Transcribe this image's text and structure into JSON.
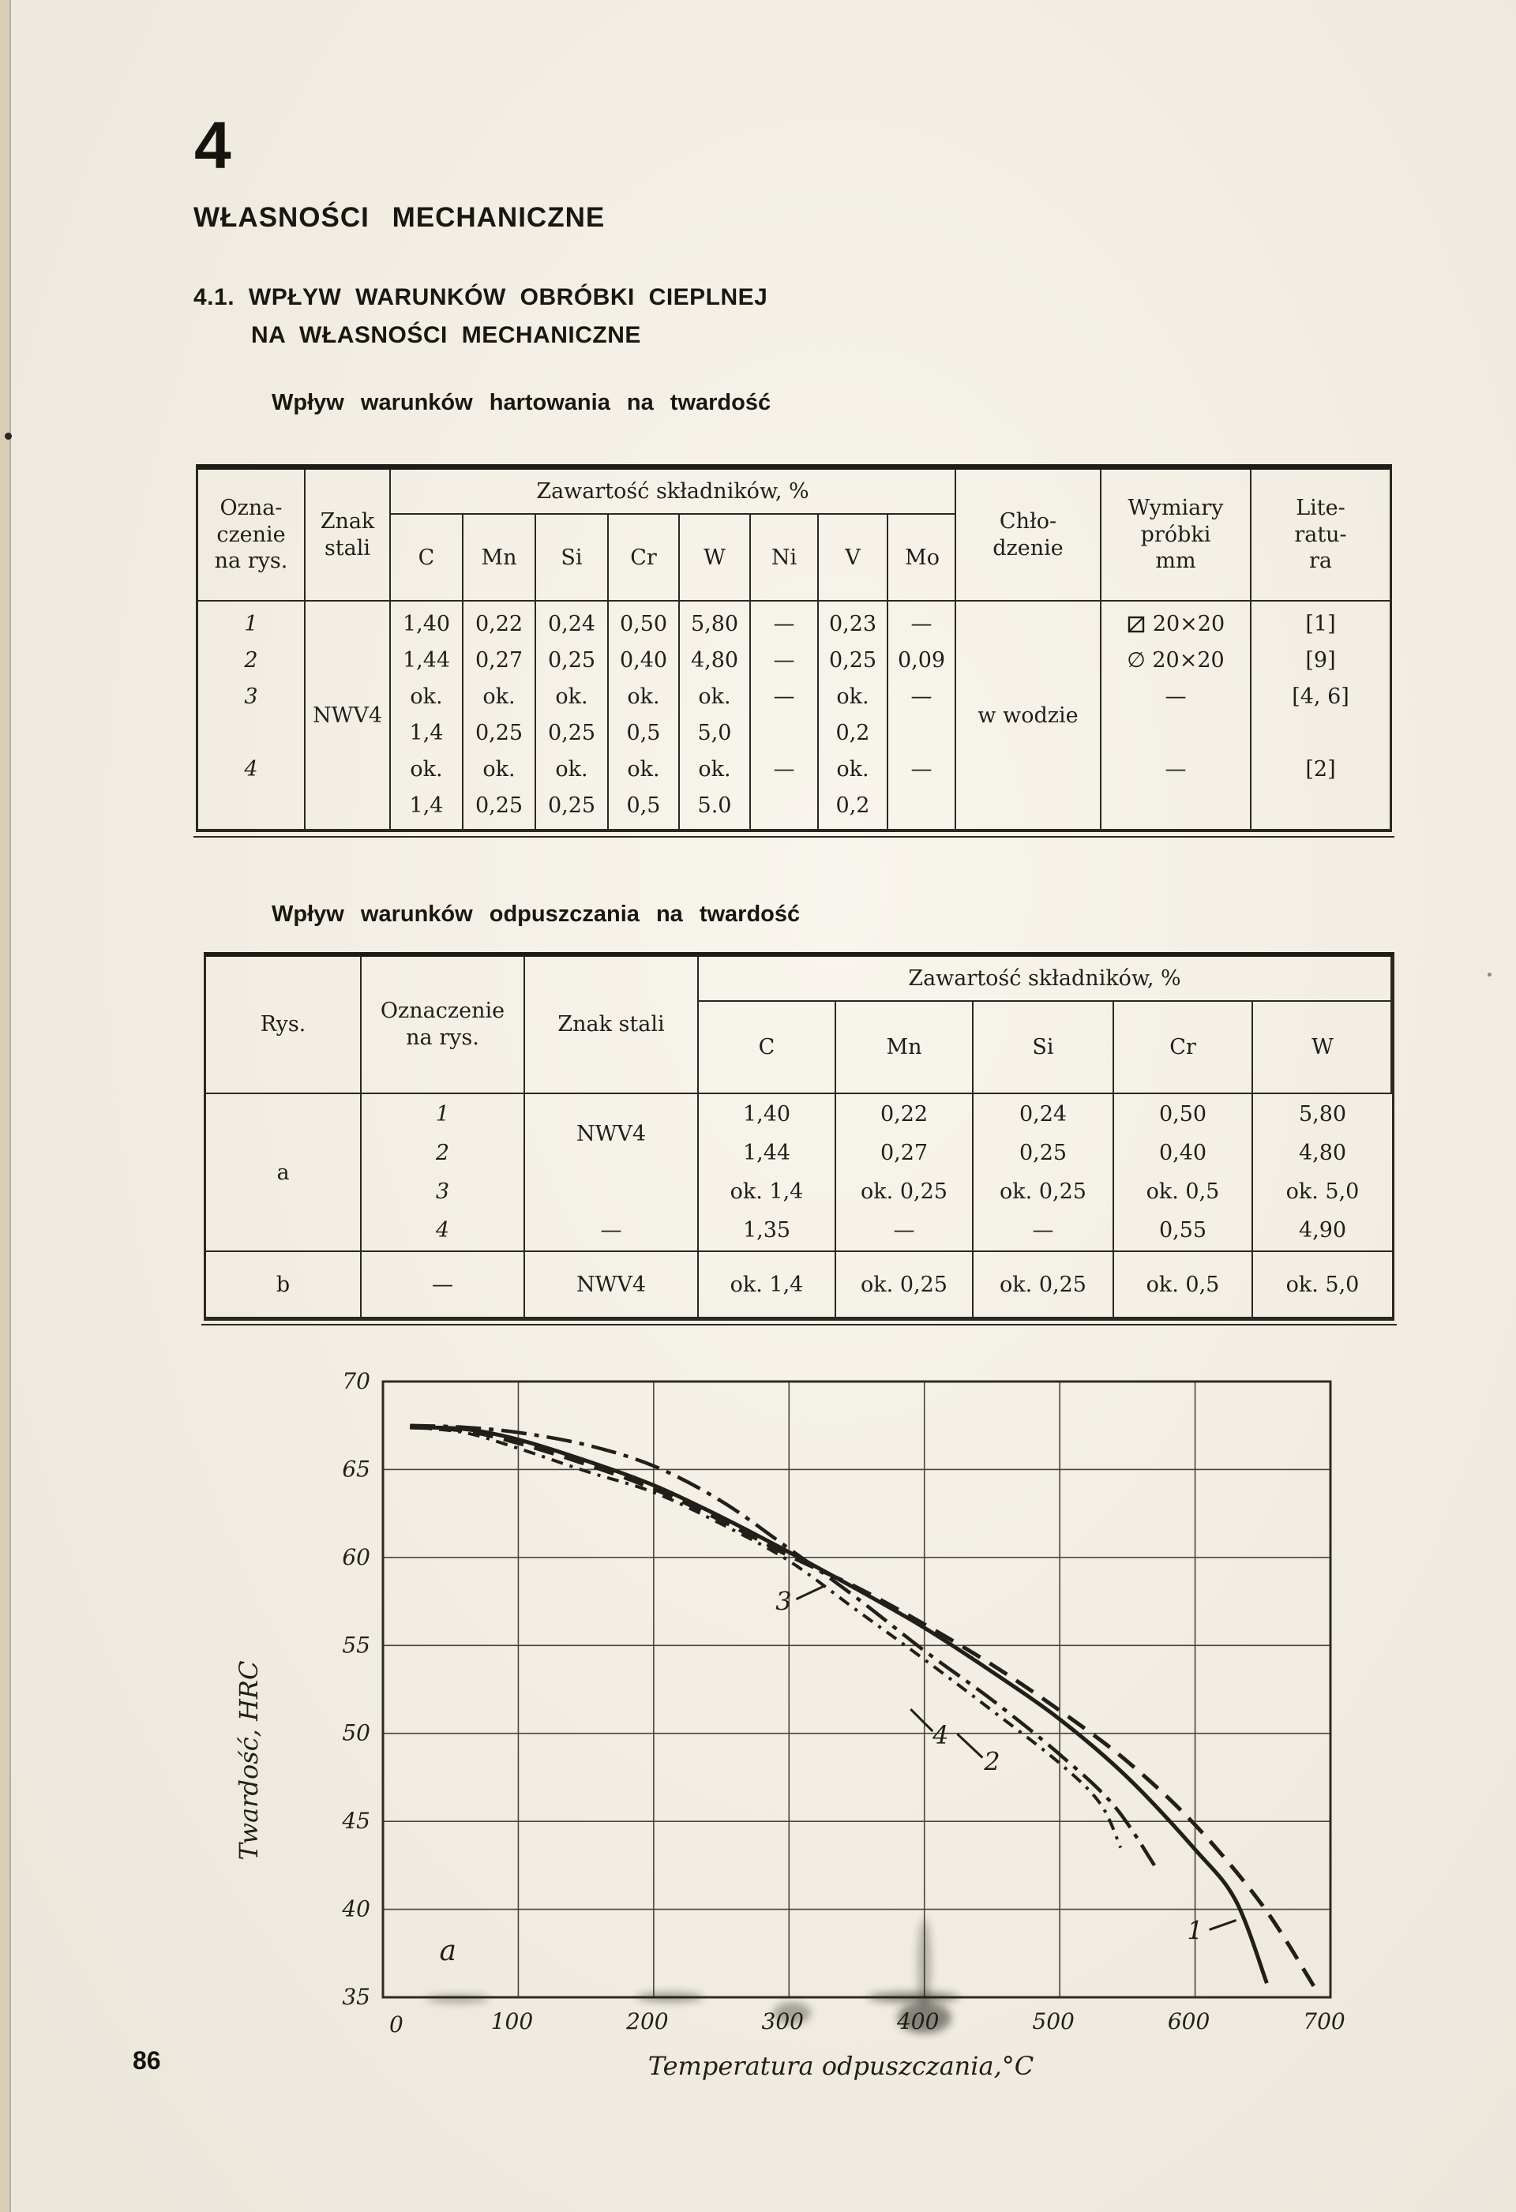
{
  "page": {
    "chapter_number": "4",
    "title": "WŁASNOŚCI MECHANICZNE",
    "section_line1": "4.1. WPŁYW WARUNKÓW OBRÓBKI CIEPLNEJ",
    "section_line2": "NA WŁASNOŚCI MECHANICZNE",
    "number": "86"
  },
  "table1": {
    "caption": "Wpływ warunków hartowania na twardość",
    "header": {
      "col1": "Ozna-\nczenie\nna rys.",
      "col2": "Znak\nstali",
      "group": "Zawartość składników, %",
      "elements": [
        "C",
        "Mn",
        "Si",
        "Cr",
        "W",
        "Ni",
        "V",
        "Mo"
      ],
      "cooling": "Chło-\ndzenie",
      "dims": "Wymiary\npróbki\nmm",
      "lit": "Lite-\nratu-\nra"
    },
    "steel": "NWV4",
    "body": {
      "no": [
        "1",
        "2",
        "3",
        "",
        "4",
        ""
      ],
      "c": [
        "1,40",
        "1,44",
        "ok.",
        "1,4",
        "ok.",
        "1,4"
      ],
      "mn": [
        "0,22",
        "0,27",
        "ok.",
        "0,25",
        "ok.",
        "0,25"
      ],
      "si": [
        "0,24",
        "0,25",
        "ok.",
        "0,25",
        "ok.",
        "0,25"
      ],
      "cr": [
        "0,50",
        "0,40",
        "ok.",
        "0,5",
        "ok.",
        "0,5"
      ],
      "w": [
        "5,80",
        "4,80",
        "ok.",
        "5,0",
        "ok.",
        "5.0"
      ],
      "ni": [
        "—",
        "—",
        "—",
        "",
        "—",
        ""
      ],
      "v": [
        "0,23",
        "0,25",
        "ok.",
        "0,2",
        "ok.",
        "0,2"
      ],
      "mo": [
        "—",
        "0,09",
        "—",
        "",
        "—",
        ""
      ],
      "cooling": "w wodzie",
      "dims": [
        "20×20",
        "∅ 20×20",
        "—",
        "",
        "—",
        ""
      ],
      "lit": [
        "[1]",
        "[9]",
        "[4, 6]",
        "",
        "[2]",
        ""
      ]
    }
  },
  "table2": {
    "caption": "Wpływ warunków odpuszczania na twardość",
    "header": {
      "col1": "Rys.",
      "col2": "Oznaczenie\nna rys.",
      "col3": "Znak stali",
      "group": "Zawartość składników, %",
      "elements": [
        "C",
        "Mn",
        "Si",
        "Cr",
        "W"
      ]
    },
    "rowA": {
      "rys": "a",
      "no": [
        "1",
        "2",
        "3",
        "4"
      ],
      "znak": [
        "NWV4",
        "",
        "",
        "—"
      ],
      "c": [
        "1,40",
        "1,44",
        "ok. 1,4",
        "1,35"
      ],
      "mn": [
        "0,22",
        "0,27",
        "ok. 0,25",
        "—"
      ],
      "si": [
        "0,24",
        "0,25",
        "ok. 0,25",
        "—"
      ],
      "cr": [
        "0,50",
        "0,40",
        "ok. 0,5",
        "0,55"
      ],
      "w": [
        "5,80",
        "4,80",
        "ok. 5,0",
        "4,90"
      ]
    },
    "rowB": {
      "rys": "b",
      "no": "—",
      "znak": "NWV4",
      "c": "ok. 1,4",
      "mn": "ok. 0,25",
      "si": "ok. 0,25",
      "cr": "ok. 0,5",
      "w": "ok. 5,0"
    }
  },
  "chart_data": {
    "type": "line",
    "xlabel": "Temperatura odpuszczania,°C",
    "ylabel": "Twardość, HRC",
    "subplot_label": "a",
    "xlim": [
      0,
      700
    ],
    "ylim": [
      35,
      70
    ],
    "xticks": [
      0,
      100,
      200,
      300,
      400,
      500,
      600,
      700
    ],
    "yticks": [
      35,
      40,
      45,
      50,
      55,
      60,
      65,
      70
    ],
    "grid": true,
    "legend_position": "inline-curve-labels",
    "series": [
      {
        "name": "1",
        "style": "solid",
        "points": [
          [
            20,
            67.4
          ],
          [
            60,
            67.3
          ],
          [
            100,
            66.7
          ],
          [
            150,
            65.5
          ],
          [
            200,
            64.1
          ],
          [
            250,
            62.3
          ],
          [
            300,
            60.3
          ],
          [
            350,
            58.2
          ],
          [
            400,
            56.0
          ],
          [
            450,
            53.5
          ],
          [
            500,
            50.8
          ],
          [
            550,
            47.5
          ],
          [
            600,
            43.4
          ],
          [
            630,
            40.5
          ],
          [
            653,
            35.8
          ]
        ]
      },
      {
        "name": "2",
        "style": "dashed",
        "points": [
          [
            20,
            67.4
          ],
          [
            60,
            67.2
          ],
          [
            100,
            66.5
          ],
          [
            150,
            65.3
          ],
          [
            200,
            63.9
          ],
          [
            250,
            62.1
          ],
          [
            300,
            60.1
          ],
          [
            350,
            58.3
          ],
          [
            400,
            56.2
          ],
          [
            450,
            53.9
          ],
          [
            500,
            51.3
          ],
          [
            550,
            48.4
          ],
          [
            600,
            44.8
          ],
          [
            650,
            40.2
          ],
          [
            688,
            35.6
          ]
        ]
      },
      {
        "name": "3",
        "style": "dashdot",
        "points": [
          [
            20,
            67.5
          ],
          [
            60,
            67.4
          ],
          [
            100,
            67.1
          ],
          [
            150,
            66.4
          ],
          [
            200,
            65.2
          ],
          [
            250,
            63.2
          ],
          [
            300,
            60.5
          ],
          [
            350,
            57.7
          ],
          [
            400,
            54.7
          ],
          [
            450,
            51.9
          ],
          [
            500,
            48.8
          ],
          [
            540,
            45.9
          ],
          [
            570,
            42.5
          ]
        ]
      },
      {
        "name": "4",
        "style": "dashdotdot",
        "points": [
          [
            20,
            67.4
          ],
          [
            60,
            67.1
          ],
          [
            100,
            66.2
          ],
          [
            150,
            64.9
          ],
          [
            200,
            63.7
          ],
          [
            250,
            61.9
          ],
          [
            300,
            59.8
          ],
          [
            350,
            57.0
          ],
          [
            400,
            54.2
          ],
          [
            450,
            51.3
          ],
          [
            500,
            48.3
          ],
          [
            530,
            46.0
          ],
          [
            545,
            43.5
          ]
        ]
      }
    ],
    "curve_labels": [
      {
        "text": "3",
        "x": 296,
        "y": 57.0,
        "tick": [
          16,
          -14,
          50,
          -30
        ]
      },
      {
        "text": "4",
        "x": 412,
        "y": 49.4,
        "tick": [
          -10,
          -16,
          -38,
          -44
        ]
      },
      {
        "text": "2",
        "x": 450,
        "y": 47.9,
        "tick": [
          -12,
          -16,
          -44,
          -46
        ]
      },
      {
        "text": "1",
        "x": 600,
        "y": 38.3,
        "tick": [
          18,
          -12,
          52,
          -24
        ]
      }
    ]
  }
}
